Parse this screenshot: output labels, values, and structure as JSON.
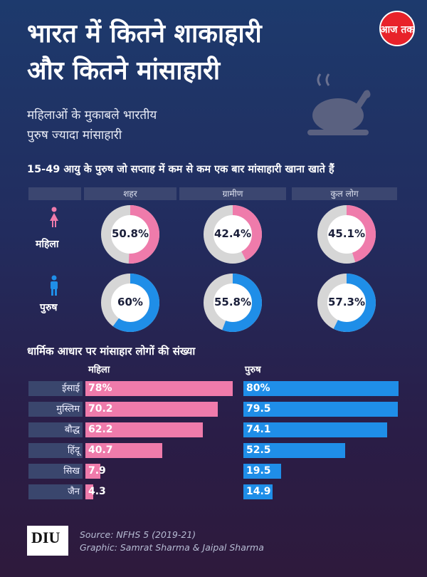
{
  "header": {
    "title_line1": "भारत में कितने शाकाहारी",
    "title_line2": "और कितने मांसाहारी",
    "subtitle_line1": "महिलाओं के मुकाबले भारतीय",
    "subtitle_line2": "पुरुष ज्यादा मांसाहारी",
    "logo_text": "आज तक",
    "brand_color": "#e8222a"
  },
  "donut_section": {
    "title": "15-49 आयु के पुरुष जो सप्ताह में कम से कम एक बार मांसाहारी खाना खाते हैं",
    "columns": [
      "शहर",
      "ग्रामीण",
      "कुल लोग"
    ],
    "rows": [
      {
        "label": "महिला",
        "icon": "female-person-icon",
        "color": "#ef7bab",
        "values": [
          50.8,
          42.4,
          45.1
        ],
        "labels": [
          "50.8%",
          "42.4%",
          "45.1%"
        ]
      },
      {
        "label": "पुरुष",
        "icon": "male-person-icon",
        "color": "#1f8ee8",
        "values": [
          60,
          55.8,
          57.3
        ],
        "labels": [
          "60%",
          "55.8%",
          "57.3%"
        ]
      }
    ]
  },
  "chart_data": {
    "type": "bar",
    "title": "धार्मिक आधार पर मांसाहार लोगों की संख्या",
    "categories": [
      "ईसाई",
      "मुस्लिम",
      "बौद्ध",
      "हिंदू",
      "सिख",
      "जैन"
    ],
    "series": [
      {
        "name": "महिला",
        "color": "#ef7bab",
        "values": [
          78,
          70.2,
          62.2,
          40.7,
          7.9,
          4.3
        ],
        "labels": [
          "78%",
          "70.2",
          "62.2",
          "40.7",
          "7.9",
          "4.3"
        ]
      },
      {
        "name": "पुरुष",
        "color": "#1f8ee8",
        "values": [
          80,
          79.5,
          74.1,
          52.5,
          19.5,
          14.9
        ],
        "labels": [
          "80%",
          "79.5",
          "74.1",
          "52.5",
          "19.5",
          "14.9"
        ]
      }
    ],
    "xlim": [
      0,
      80
    ]
  },
  "footer": {
    "logo_text": "DIU",
    "source": "Source: NFHS 5 (2019-21)",
    "credit": "Graphic: Samrat Sharma & Jaipal Sharma"
  }
}
